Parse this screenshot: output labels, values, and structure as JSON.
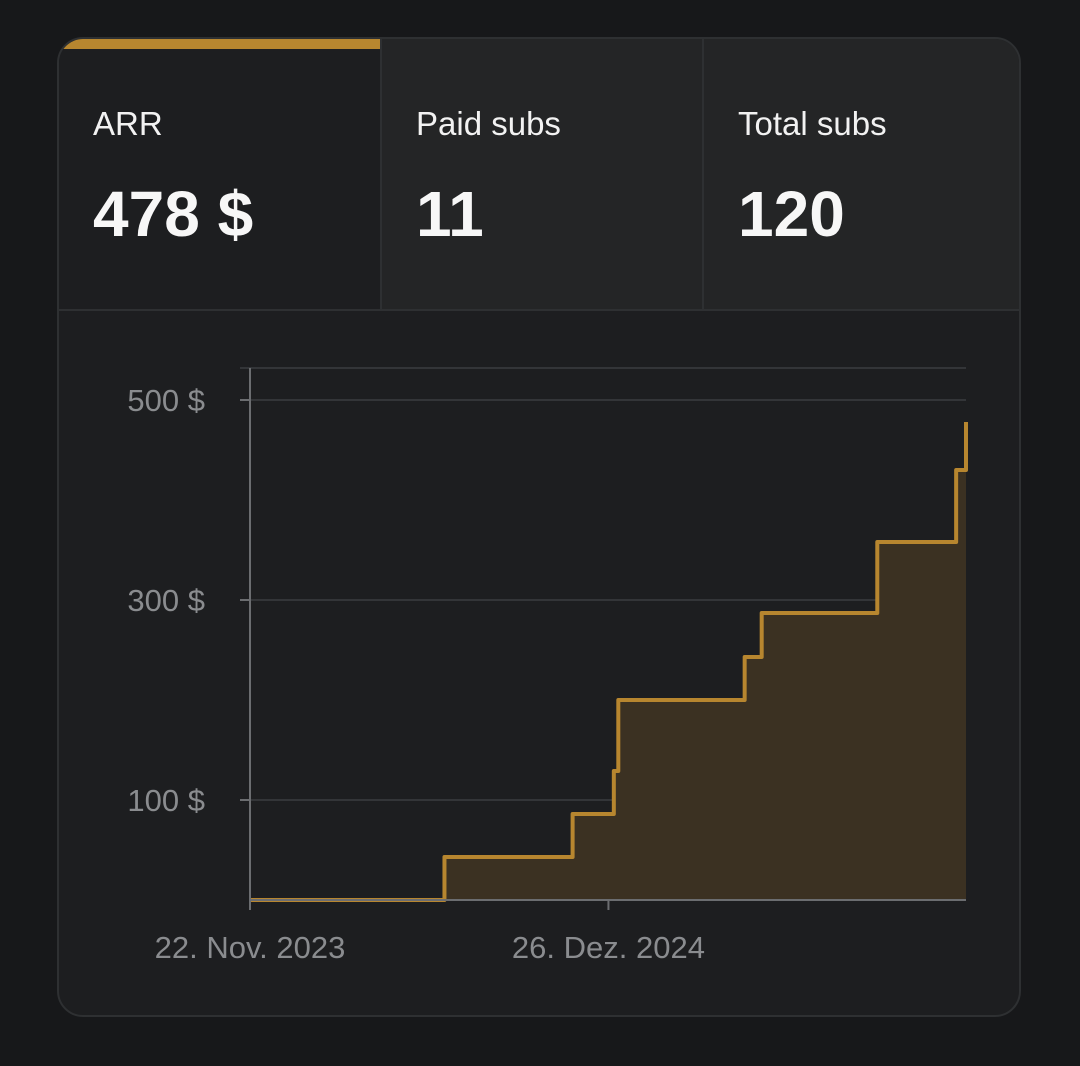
{
  "colors": {
    "accent": "#b7862f",
    "fill": "#3b3122",
    "grid": "#333538",
    "axis": "#6b6d70",
    "tick_text": "#8a8c8f"
  },
  "tabs": [
    {
      "label": "ARR",
      "value": "478 $",
      "active": true
    },
    {
      "label": "Paid subs",
      "value": "11",
      "active": false
    },
    {
      "label": "Total subs",
      "value": "120",
      "active": false
    }
  ],
  "chart_data": {
    "type": "area",
    "step": true,
    "x_type": "date",
    "ylim": [
      0,
      500
    ],
    "y_ticks": [
      {
        "value": 100,
        "label": "100 $"
      },
      {
        "value": 300,
        "label": "300 $"
      },
      {
        "value": 500,
        "label": "500 $"
      }
    ],
    "x_ticks": [
      {
        "value": "2023-11-22",
        "label": "22. Nov. 2023"
      },
      {
        "value": "2024-12-26",
        "label": "26. Dez. 2024"
      }
    ],
    "xlim": [
      "2023-11-22",
      "2026-01-29"
    ],
    "grid": true,
    "series": [
      {
        "points": [
          {
            "x": "2023-11-22",
            "y": 0
          },
          {
            "x": "2024-06-26",
            "y": 43
          },
          {
            "x": "2024-11-16",
            "y": 86
          },
          {
            "x": "2025-01-01",
            "y": 129
          },
          {
            "x": "2025-01-06",
            "y": 200
          },
          {
            "x": "2025-05-27",
            "y": 243
          },
          {
            "x": "2025-06-15",
            "y": 287
          },
          {
            "x": "2025-10-22",
            "y": 358
          },
          {
            "x": "2026-01-18",
            "y": 430
          },
          {
            "x": "2026-01-29",
            "y": 478
          }
        ]
      }
    ]
  }
}
